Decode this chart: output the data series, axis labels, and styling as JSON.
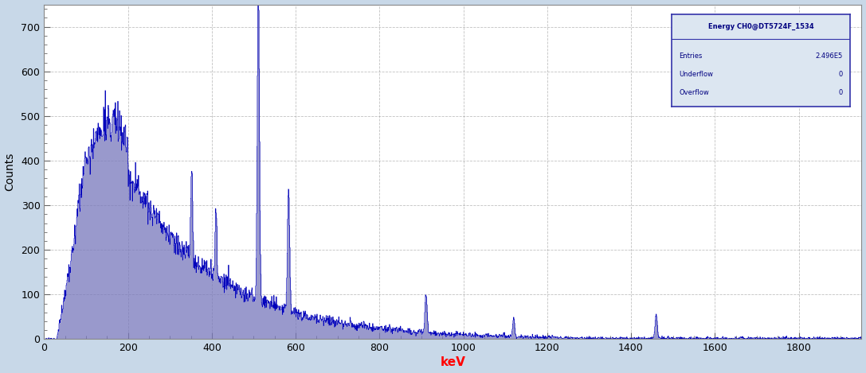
{
  "title": "Energy CH0@DT5724F_1534",
  "xlabel": "keV",
  "ylabel": "Counts",
  "entries": "2.496E5",
  "underflow": "0",
  "overflow": "0",
  "xlim": [
    0,
    1950
  ],
  "ylim": [
    0,
    750
  ],
  "yticks": [
    0,
    100,
    200,
    300,
    400,
    500,
    600,
    700
  ],
  "xticks": [
    0,
    200,
    400,
    600,
    800,
    1000,
    1200,
    1400,
    1600,
    1800
  ],
  "line_color": "#0000BB",
  "fill_color": "#7777BB",
  "bg_color": "#ffffff",
  "plot_bg_color": "#ffffff",
  "grid_color": "#999999",
  "legend_bg": "#dce6f1",
  "legend_border": "#3333aa",
  "outer_bg": "#c8d8e8"
}
